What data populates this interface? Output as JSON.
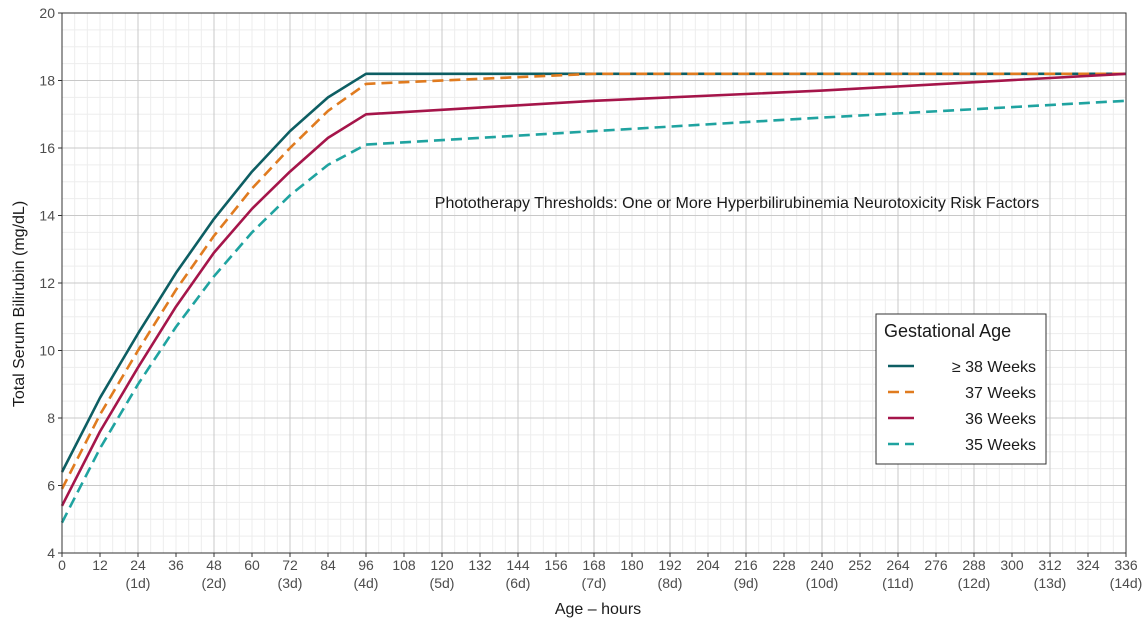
{
  "chart_data": {
    "type": "line",
    "title": "",
    "annotation": "Phototherapy Thresholds: One or More Hyperbilirubinemia Neurotoxicity Risk Factors",
    "xlabel": "Age – hours",
    "ylabel": "Total Serum Bilirubin (mg/dL)",
    "xlim": [
      0,
      336
    ],
    "ylim": [
      4,
      20
    ],
    "x_ticks": [
      0,
      12,
      24,
      36,
      48,
      60,
      72,
      84,
      96,
      108,
      120,
      132,
      144,
      156,
      168,
      180,
      192,
      204,
      216,
      228,
      240,
      252,
      264,
      276,
      288,
      300,
      312,
      324,
      336
    ],
    "x_tick_labels": [
      "0",
      "12",
      "24",
      "36",
      "48",
      "60",
      "72",
      "84",
      "96",
      "108",
      "120",
      "132",
      "144",
      "156",
      "168",
      "180",
      "192",
      "204",
      "216",
      "228",
      "240",
      "252",
      "264",
      "276",
      "288",
      "300",
      "312",
      "324",
      "336"
    ],
    "day_labels": [
      {
        "x": 24,
        "label": "(1d)"
      },
      {
        "x": 48,
        "label": "(2d)"
      },
      {
        "x": 72,
        "label": "(3d)"
      },
      {
        "x": 96,
        "label": "(4d)"
      },
      {
        "x": 120,
        "label": "(5d)"
      },
      {
        "x": 144,
        "label": "(6d)"
      },
      {
        "x": 168,
        "label": "(7d)"
      },
      {
        "x": 192,
        "label": "(8d)"
      },
      {
        "x": 216,
        "label": "(9d)"
      },
      {
        "x": 240,
        "label": "(10d)"
      },
      {
        "x": 264,
        "label": "(11d)"
      },
      {
        "x": 288,
        "label": "(12d)"
      },
      {
        "x": 312,
        "label": "(13d)"
      },
      {
        "x": 336,
        "label": "(14d)"
      }
    ],
    "y_ticks": [
      4,
      6,
      8,
      10,
      12,
      14,
      16,
      18,
      20
    ],
    "grid": true,
    "legend": {
      "title": "Gestational Age",
      "position": "right",
      "entries": [
        "≥ 38 Weeks",
        "37 Weeks",
        "36 Weeks",
        "35 Weeks"
      ]
    },
    "series": [
      {
        "name": "≥ 38 Weeks",
        "color": "#0d5e63",
        "dash": "solid",
        "x": [
          0,
          12,
          24,
          36,
          48,
          60,
          72,
          84,
          96,
          168,
          240,
          336
        ],
        "y": [
          6.4,
          8.6,
          10.5,
          12.3,
          13.9,
          15.3,
          16.5,
          17.5,
          18.2,
          18.2,
          18.2,
          18.2
        ]
      },
      {
        "name": "37 Weeks",
        "color": "#e07b1f",
        "dash": "dashed",
        "x": [
          0,
          12,
          24,
          36,
          48,
          60,
          72,
          84,
          96,
          168,
          240,
          336
        ],
        "y": [
          5.9,
          8.1,
          10.0,
          11.8,
          13.4,
          14.8,
          16.0,
          17.1,
          17.9,
          18.2,
          18.2,
          18.2
        ]
      },
      {
        "name": "36 Weeks",
        "color": "#a5154a",
        "dash": "solid",
        "x": [
          0,
          12,
          24,
          36,
          48,
          60,
          72,
          84,
          96,
          168,
          240,
          336
        ],
        "y": [
          5.4,
          7.6,
          9.5,
          11.3,
          12.9,
          14.2,
          15.3,
          16.3,
          17.0,
          17.4,
          17.7,
          18.2
        ]
      },
      {
        "name": "35 Weeks",
        "color": "#1fa3a0",
        "dash": "dashed",
        "x": [
          0,
          12,
          24,
          36,
          48,
          60,
          72,
          84,
          96,
          168,
          240,
          336
        ],
        "y": [
          4.9,
          7.1,
          9.0,
          10.7,
          12.2,
          13.5,
          14.6,
          15.5,
          16.1,
          16.5,
          16.9,
          17.4
        ]
      }
    ]
  }
}
